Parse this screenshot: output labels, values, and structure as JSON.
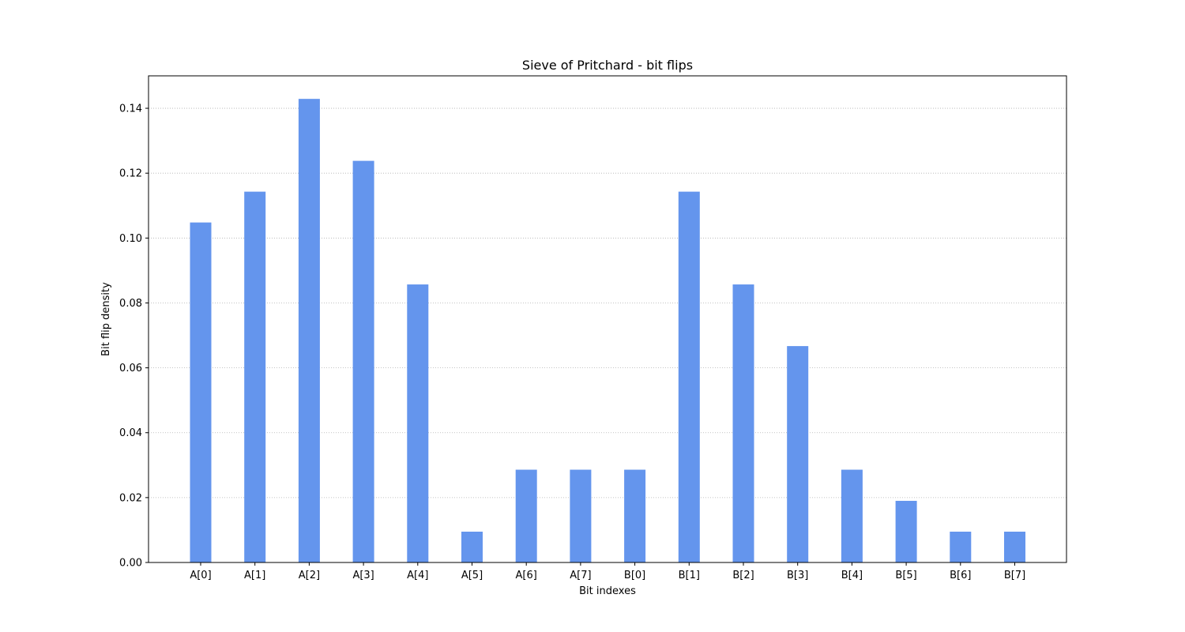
{
  "chart_data": {
    "type": "bar",
    "title": "Sieve of Pritchard - bit flips",
    "xlabel": "Bit indexes",
    "ylabel": "Bit flip density",
    "categories": [
      "A[0]",
      "A[1]",
      "A[2]",
      "A[3]",
      "A[4]",
      "A[5]",
      "A[6]",
      "A[7]",
      "B[0]",
      "B[1]",
      "B[2]",
      "B[3]",
      "B[4]",
      "B[5]",
      "B[6]",
      "B[7]"
    ],
    "values": [
      0.1048,
      0.1143,
      0.1429,
      0.1238,
      0.0857,
      0.0095,
      0.0286,
      0.0286,
      0.0286,
      0.1143,
      0.0857,
      0.0667,
      0.0286,
      0.019,
      0.0095,
      0.0095
    ],
    "ylim": [
      0,
      0.15
    ],
    "yticks": [
      "0.00",
      "0.02",
      "0.04",
      "0.06",
      "0.08",
      "0.10",
      "0.12",
      "0.14"
    ],
    "grid": "y-dotted",
    "bar_color": "#6495ED"
  }
}
